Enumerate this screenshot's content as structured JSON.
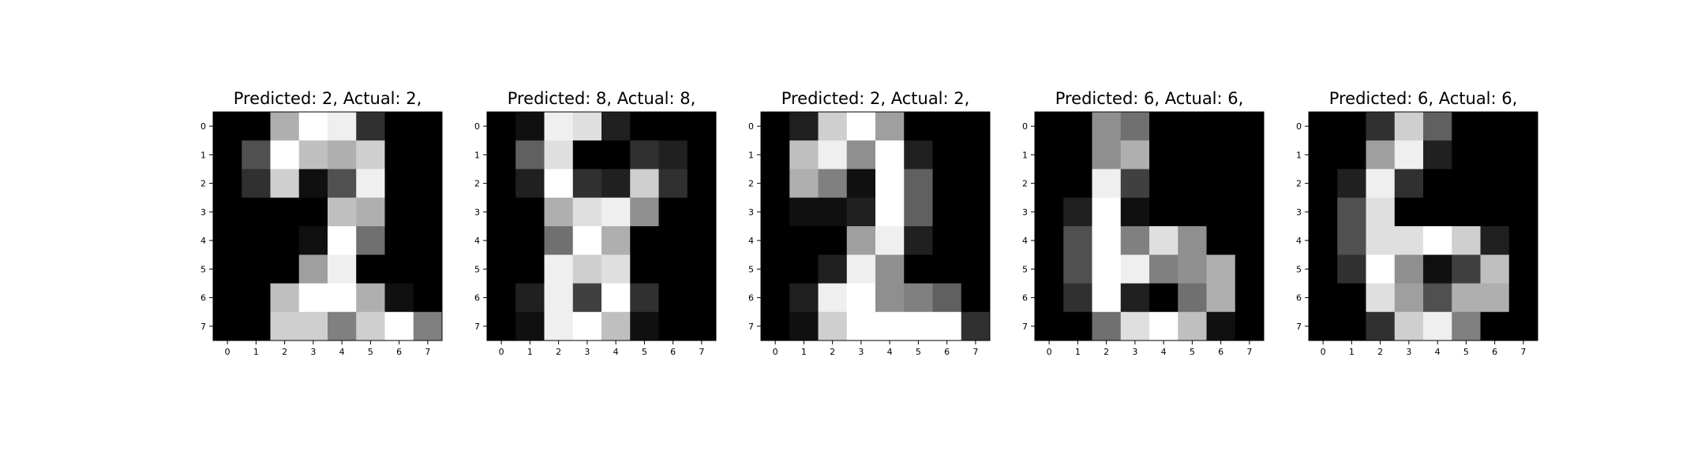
{
  "figure": {
    "background": "#ffffff",
    "colormap": "gray"
  },
  "chart_data": [
    {
      "type": "heatmap",
      "title": "Predicted: 2, Actual: 2,",
      "xticks": [
        "0",
        "1",
        "2",
        "3",
        "4",
        "5",
        "6",
        "7"
      ],
      "yticks": [
        "0",
        "1",
        "2",
        "3",
        "4",
        "5",
        "6",
        "7"
      ],
      "vmin": 0,
      "vmax": 16,
      "matrix": [
        [
          0,
          0,
          11,
          16,
          15,
          3,
          0,
          0
        ],
        [
          0,
          5,
          16,
          12,
          11,
          13,
          0,
          0
        ],
        [
          0,
          3,
          13,
          1,
          5,
          15,
          0,
          0
        ],
        [
          0,
          0,
          0,
          0,
          12,
          11,
          0,
          0
        ],
        [
          0,
          0,
          0,
          1,
          16,
          7,
          0,
          0
        ],
        [
          0,
          0,
          0,
          10,
          15,
          0,
          0,
          0
        ],
        [
          0,
          0,
          12,
          16,
          16,
          11,
          1,
          0
        ],
        [
          0,
          0,
          13,
          13,
          8,
          13,
          16,
          8
        ]
      ]
    },
    {
      "type": "heatmap",
      "title": "Predicted: 8, Actual: 8,",
      "xticks": [
        "0",
        "1",
        "2",
        "3",
        "4",
        "5",
        "6",
        "7"
      ],
      "yticks": [
        "0",
        "1",
        "2",
        "3",
        "4",
        "5",
        "6",
        "7"
      ],
      "vmin": 0,
      "vmax": 16,
      "matrix": [
        [
          0,
          1,
          15,
          14,
          2,
          0,
          0,
          0
        ],
        [
          0,
          6,
          14,
          0,
          0,
          3,
          2,
          0
        ],
        [
          0,
          2,
          16,
          3,
          2,
          13,
          3,
          0
        ],
        [
          0,
          0,
          11,
          14,
          15,
          9,
          0,
          0
        ],
        [
          0,
          0,
          7,
          16,
          11,
          0,
          0,
          0
        ],
        [
          0,
          0,
          15,
          13,
          14,
          0,
          0,
          0
        ],
        [
          0,
          2,
          15,
          4,
          16,
          3,
          0,
          0
        ],
        [
          0,
          1,
          15,
          16,
          12,
          1,
          0,
          0
        ]
      ]
    },
    {
      "type": "heatmap",
      "title": "Predicted: 2, Actual: 2,",
      "xticks": [
        "0",
        "1",
        "2",
        "3",
        "4",
        "5",
        "6",
        "7"
      ],
      "yticks": [
        "0",
        "1",
        "2",
        "3",
        "4",
        "5",
        "6",
        "7"
      ],
      "vmin": 0,
      "vmax": 16,
      "matrix": [
        [
          0,
          2,
          13,
          16,
          10,
          0,
          0,
          0
        ],
        [
          0,
          12,
          15,
          9,
          16,
          2,
          0,
          0
        ],
        [
          0,
          11,
          8,
          1,
          16,
          6,
          0,
          0
        ],
        [
          0,
          1,
          1,
          2,
          16,
          6,
          0,
          0
        ],
        [
          0,
          0,
          0,
          10,
          15,
          2,
          0,
          0
        ],
        [
          0,
          0,
          2,
          15,
          9,
          0,
          0,
          0
        ],
        [
          0,
          2,
          15,
          16,
          9,
          8,
          6,
          0
        ],
        [
          0,
          1,
          13,
          16,
          16,
          16,
          16,
          3
        ]
      ]
    },
    {
      "type": "heatmap",
      "title": "Predicted: 6, Actual: 6,",
      "xticks": [
        "0",
        "1",
        "2",
        "3",
        "4",
        "5",
        "6",
        "7"
      ],
      "yticks": [
        "0",
        "1",
        "2",
        "3",
        "4",
        "5",
        "6",
        "7"
      ],
      "vmin": 0,
      "vmax": 16,
      "matrix": [
        [
          0,
          0,
          9,
          7,
          0,
          0,
          0,
          0
        ],
        [
          0,
          0,
          9,
          11,
          0,
          0,
          0,
          0
        ],
        [
          0,
          0,
          15,
          4,
          0,
          0,
          0,
          0
        ],
        [
          0,
          2,
          16,
          1,
          0,
          0,
          0,
          0
        ],
        [
          0,
          5,
          16,
          8,
          14,
          9,
          0,
          0
        ],
        [
          0,
          5,
          16,
          15,
          8,
          9,
          11,
          0
        ],
        [
          0,
          3,
          16,
          2,
          0,
          7,
          11,
          0
        ],
        [
          0,
          0,
          7,
          14,
          16,
          12,
          1,
          0
        ]
      ]
    },
    {
      "type": "heatmap",
      "title": "Predicted: 6, Actual: 6,",
      "xticks": [
        "0",
        "1",
        "2",
        "3",
        "4",
        "5",
        "6",
        "7"
      ],
      "yticks": [
        "0",
        "1",
        "2",
        "3",
        "4",
        "5",
        "6",
        "7"
      ],
      "vmin": 0,
      "vmax": 16,
      "matrix": [
        [
          0,
          0,
          3,
          13,
          6,
          0,
          0,
          0
        ],
        [
          0,
          0,
          10,
          15,
          2,
          0,
          0,
          0
        ],
        [
          0,
          2,
          15,
          3,
          0,
          0,
          0,
          0
        ],
        [
          0,
          5,
          14,
          0,
          0,
          0,
          0,
          0
        ],
        [
          0,
          5,
          14,
          14,
          16,
          13,
          2,
          0
        ],
        [
          0,
          3,
          16,
          9,
          1,
          4,
          12,
          0
        ],
        [
          0,
          0,
          14,
          10,
          5,
          11,
          11,
          0
        ],
        [
          0,
          0,
          3,
          13,
          15,
          8,
          0,
          0
        ]
      ]
    }
  ]
}
